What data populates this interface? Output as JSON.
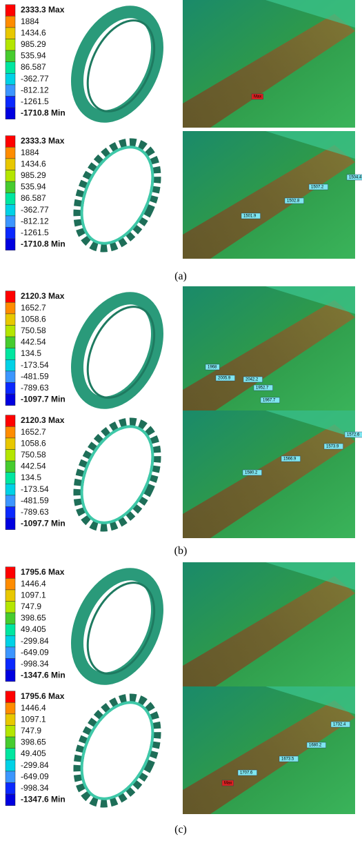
{
  "panels": [
    {
      "caption": "(a)",
      "plots": [
        {
          "legend": [
            "2333.3 Max",
            "1884",
            "1434.6",
            "985.29",
            "535.94",
            "86.587",
            "-362.77",
            "-812.12",
            "-1261.5",
            "-1710.8 Min"
          ],
          "probes": [
            "Max"
          ]
        },
        {
          "legend": [
            "2333.3 Max",
            "1884",
            "1434.6",
            "985.29",
            "535.94",
            "86.587",
            "-362.77",
            "-812.12",
            "-1261.5",
            "-1710.8 Min"
          ],
          "probes": [
            "1504.4",
            "1507.2",
            "1502.8",
            "1501.9"
          ]
        }
      ]
    },
    {
      "caption": "(b)",
      "plots": [
        {
          "legend": [
            "2120.3 Max",
            "1652.7",
            "1058.6",
            "750.58",
            "442.54",
            "134.5",
            "-173.54",
            "-481.59",
            "-789.63",
            "-1097.7 Min"
          ],
          "probes": [
            "1968",
            "2005.9",
            "2042.2",
            "1952.7",
            "1967.7"
          ]
        },
        {
          "legend": [
            "2120.3 Max",
            "1652.7",
            "1058.6",
            "750.58",
            "442.54",
            "134.5",
            "-173.54",
            "-481.59",
            "-789.63",
            "-1097.7 Min"
          ],
          "probes": [
            "1572.6",
            "1573.9",
            "1566.9",
            "1580.2"
          ]
        }
      ]
    },
    {
      "caption": "(c)",
      "plots": [
        {
          "legend": [
            "1795.6 Max",
            "1446.4",
            "1097.1",
            "747.9",
            "398.65",
            "49.405",
            "-299.84",
            "-649.09",
            "-998.34",
            "-1347.6 Min"
          ],
          "probes": []
        },
        {
          "legend": [
            "1795.6 Max",
            "1446.4",
            "1097.1",
            "747.9",
            "398.65",
            "49.405",
            "-299.84",
            "-649.09",
            "-998.34",
            "-1347.6 Min"
          ],
          "probes": [
            "1732.4",
            "1680.2",
            "1673.5",
            "1707.6",
            "Max"
          ]
        }
      ]
    }
  ]
}
